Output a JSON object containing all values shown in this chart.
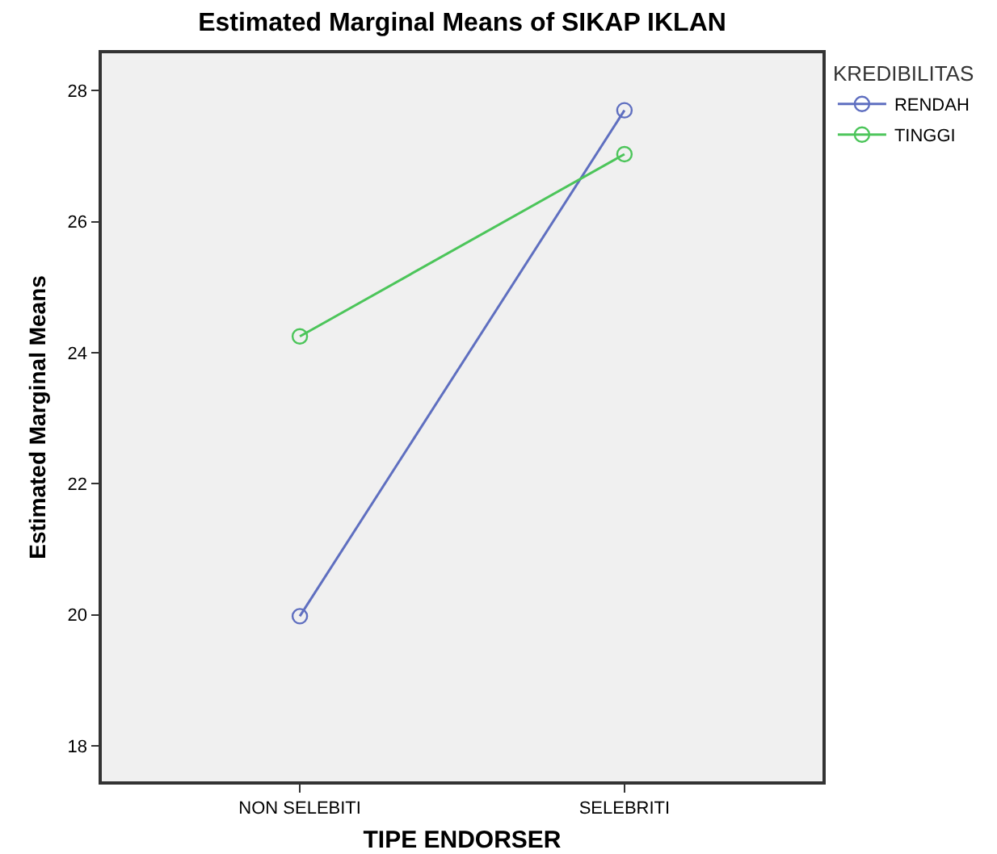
{
  "chart_data": {
    "type": "line",
    "title": "Estimated Marginal Means of SIKAP IKLAN",
    "xlabel": "TIPE ENDORSER",
    "ylabel": "Estimated Marginal Means",
    "legend_title": "KREDIBILITAS",
    "categories": [
      "NON SELEBITI",
      "SELEBRITI"
    ],
    "series": [
      {
        "name": "RENDAH",
        "color": "#5f6fc0",
        "values": [
          19.98,
          27.7
        ]
      },
      {
        "name": "TINGGI",
        "color": "#4cc55a",
        "values": [
          24.25,
          27.03
        ]
      }
    ],
    "ylim": [
      17.46,
      28.57
    ],
    "yticks": [
      18,
      20,
      22,
      24,
      26,
      28
    ],
    "grid": false,
    "legend": "right",
    "marker": "circle",
    "line_style": "solid"
  }
}
